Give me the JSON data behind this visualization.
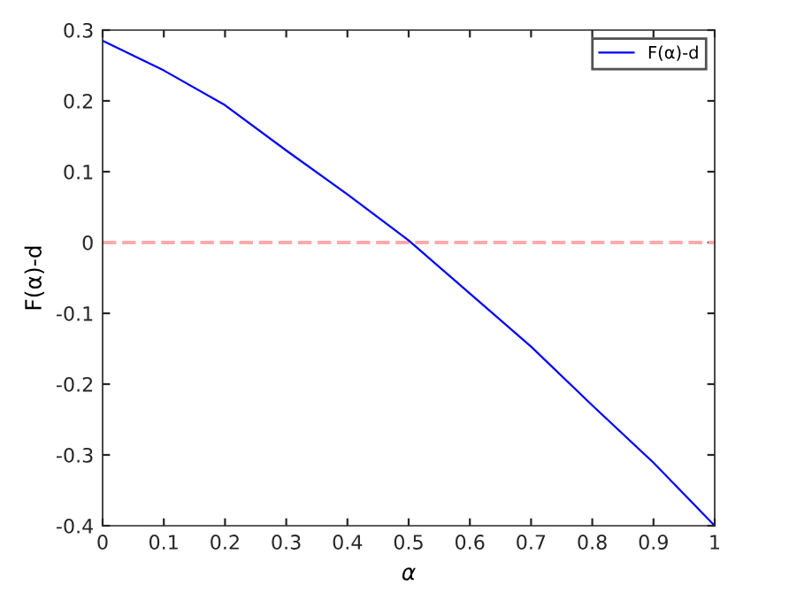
{
  "chart_data": {
    "type": "line",
    "xlabel": "α",
    "ylabel": "F(α)-d",
    "x": [
      0,
      0.1,
      0.2,
      0.3,
      0.4,
      0.5,
      0.6,
      0.7,
      0.8,
      0.9,
      1
    ],
    "series": [
      {
        "name": "F(α)-d",
        "color": "#0000ff",
        "values": [
          0.285,
          0.243,
          0.194,
          0.13,
          0.068,
          0.003,
          -0.072,
          -0.147,
          -0.23,
          -0.311,
          -0.4
        ]
      }
    ],
    "xlim": [
      0,
      1
    ],
    "xticks": [
      0,
      0.1,
      0.2,
      0.3,
      0.4,
      0.5,
      0.6,
      0.7,
      0.8,
      0.9,
      1
    ],
    "ylim": [
      -0.4,
      0.3
    ],
    "yticks": [
      -0.4,
      -0.3,
      -0.2,
      -0.1,
      0,
      0.1,
      0.2,
      0.3
    ],
    "ref_lines": [
      {
        "axis": "y",
        "value": 0,
        "color": "#ffaaaa",
        "line_style": "dashed"
      }
    ],
    "legend": "top right",
    "grid": false,
    "marker": "none",
    "line_style": "solid"
  }
}
